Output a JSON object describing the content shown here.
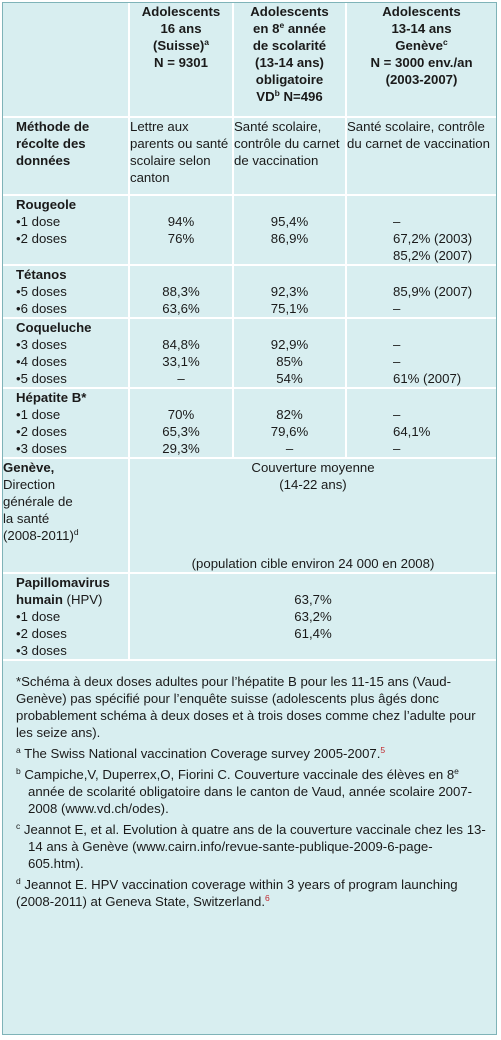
{
  "header": {
    "col1": [
      "Adolescents",
      "16 ans",
      "(Suisse)",
      "N = 9301"
    ],
    "col1_sup": "a",
    "col2": [
      "Adolescents",
      "en 8",
      " année",
      "de scolarité",
      "(13-14 ans)",
      "obligatoire",
      "VD",
      " N=496"
    ],
    "col2_sup_e": "e",
    "col2_sup_b": "b",
    "col3": [
      "Adolescents",
      "13-14 ans",
      "Genève",
      "N = 3000 env./an",
      "(2003-2007)"
    ],
    "col3_sup": "c"
  },
  "methode": {
    "label": "Méthode de récolte des données",
    "col1": "Lettre aux parents ou santé scolaire selon canton",
    "col2": "Santé scolaire, contrôle du carnet de vaccination",
    "col3": "Santé scolaire, contrôle du carnet de vaccination"
  },
  "rougeole": {
    "title": "Rougeole",
    "rows": [
      {
        "label": "•1 dose",
        "v1": "94%",
        "v2": "95,4%",
        "v3": "–"
      },
      {
        "label": "•2 doses",
        "v1": "76%",
        "v2": "86,9%",
        "v3": "67,2% (2003)"
      },
      {
        "label": "",
        "v1": "",
        "v2": "",
        "v3": "85,2% (2007)"
      }
    ]
  },
  "tetanos": {
    "title": "Tétanos",
    "rows": [
      {
        "label": "•5 doses",
        "v1": "88,3%",
        "v2": "92,3%",
        "v3": "85,9% (2007)"
      },
      {
        "label": "•6 doses",
        "v1": "63,6%",
        "v2": "75,1%",
        "v3": "–"
      }
    ]
  },
  "coqueluche": {
    "title": "Coqueluche",
    "rows": [
      {
        "label": "•3 doses",
        "v1": "84,8%",
        "v2": "92,9%",
        "v3": "–"
      },
      {
        "label": "•4 doses",
        "v1": "33,1%",
        "v2": "85%",
        "v3": "–"
      },
      {
        "label": "•5 doses",
        "v1": "–",
        "v2": "54%",
        "v3": "61% (2007)"
      }
    ]
  },
  "hepatite": {
    "title": "Hépatite B*",
    "rows": [
      {
        "label": "•1 dose",
        "v1": "70%",
        "v2": "82%",
        "v3": "–"
      },
      {
        "label": "•2 doses",
        "v1": "65,3%",
        "v2": "79,6%",
        "v3": "64,1%"
      },
      {
        "label": "•3 doses",
        "v1": "29,3%",
        "v2": "–",
        "v3": "–"
      }
    ]
  },
  "geneve": {
    "title": "Genève,",
    "lines": [
      "Direction",
      "générale de",
      "la santé",
      "(2008-2011)"
    ],
    "sup": "d",
    "coverage": "Couverture moyenne",
    "age": "(14-22 ans)",
    "population": "(population cible environ 24 000 en 2008)"
  },
  "hpv": {
    "title": "Papillomavirus humain",
    "title_suffix": " (HPV)",
    "rows": [
      {
        "label": "•1 dose",
        "v": "63,7%"
      },
      {
        "label": "•2 doses",
        "v": "63,2%"
      },
      {
        "label": "•3 doses",
        "v": "61,4%"
      }
    ]
  },
  "notes": {
    "star": "*Schéma à deux doses adultes pour l’hépatite B pour les 11-15 ans (Vaud-Genève) pas spécifié pour l’enquête suisse (adolescents plus âgés donc probablement schéma à deux doses et à trois doses comme chez l’adulte pour les seize ans).",
    "a_sup": "a",
    "a_text": " The Swiss National vaccination Coverage survey 2005-2007.",
    "a_ref": "5",
    "b_sup": "b",
    "b_text": " Campiche,V, Duperrex,O, Fiorini C. Couverture vaccinale des élèves en 8",
    "b_sup2": "e",
    "b_text2": " année de scolarité obligatoire dans le canton de Vaud, année scolaire 2007-2008 (www.vd.ch/odes).",
    "c_sup": "c",
    "c_text": " Jeannot E, et al. Evolution à quatre ans de la couverture vaccinale chez les 13-14 ans à Genève (www.cairn.info/revue-sante-publique-2009-6-page-605.htm).",
    "d_sup": "d",
    "d_text": " Jeannot E. HPV vaccination coverage within 3 years of program launching (2008-2011) at Geneva State, Switzerland.",
    "d_ref": "6"
  }
}
